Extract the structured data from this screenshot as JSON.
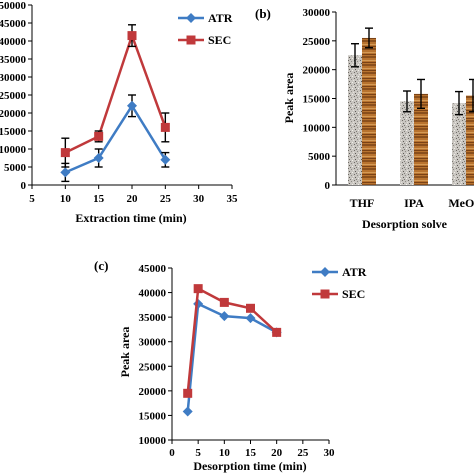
{
  "chart_data": [
    {
      "panel": "",
      "type": "line",
      "xlabel": "Extraction time (min)",
      "ylabel": "",
      "xlim": [
        5,
        35
      ],
      "ylim": [
        0,
        50000
      ],
      "x": [
        10,
        15,
        20,
        25
      ],
      "xticks": [
        "5",
        "10",
        "15",
        "20",
        "25",
        "30",
        "35"
      ],
      "yticks": [
        "0",
        "5000",
        "10000",
        "15000",
        "20000",
        "25000",
        "30000",
        "35000",
        "40000",
        "45000",
        "50000"
      ],
      "series": [
        {
          "name": "ATR",
          "color": "#3f7cc4",
          "marker": "diamond",
          "values": [
            3500,
            7500,
            22000,
            7000
          ],
          "error": [
            2500,
            2500,
            3000,
            2000
          ]
        },
        {
          "name": "SEC",
          "color": "#c0393b",
          "marker": "square",
          "values": [
            9000,
            13500,
            41500,
            16000
          ],
          "error": [
            4000,
            1500,
            3000,
            4000
          ]
        }
      ]
    },
    {
      "panel": "(b)",
      "type": "bar",
      "xlabel": "Desorption solve",
      "ylabel": "Peak area",
      "ylim": [
        0,
        30000
      ],
      "categories": [
        "THF",
        "IPA",
        "MeOH"
      ],
      "yticks": [
        "0",
        "5000",
        "10000",
        "15000",
        "20000",
        "25000",
        "30000"
      ],
      "series": [
        {
          "name": "",
          "color": "#b9b9b9",
          "values": [
            22500,
            14500,
            14200
          ],
          "error": [
            2000,
            1800,
            2000
          ]
        },
        {
          "name": "",
          "color": "#b36b2e",
          "values": [
            25500,
            15800,
            15500
          ],
          "error": [
            1700,
            2500,
            2800
          ]
        }
      ]
    },
    {
      "panel": "(c)",
      "type": "line",
      "xlabel": "Desorption time (min)",
      "ylabel": "Peak area",
      "xlim": [
        0,
        30
      ],
      "ylim": [
        10000,
        45000
      ],
      "x": [
        3,
        5,
        10,
        15,
        20
      ],
      "xticks": [
        "0",
        "5",
        "10",
        "15",
        "20",
        "25",
        "30"
      ],
      "yticks": [
        "10000",
        "15000",
        "20000",
        "25000",
        "30000",
        "35000",
        "40000",
        "45000"
      ],
      "series": [
        {
          "name": "ATR",
          "color": "#3f7cc4",
          "marker": "diamond",
          "values": [
            15800,
            37700,
            35200,
            34800,
            31900
          ]
        },
        {
          "name": "SEC",
          "color": "#c0393b",
          "marker": "square",
          "values": [
            19500,
            40800,
            38000,
            36800,
            31900
          ]
        }
      ]
    }
  ]
}
